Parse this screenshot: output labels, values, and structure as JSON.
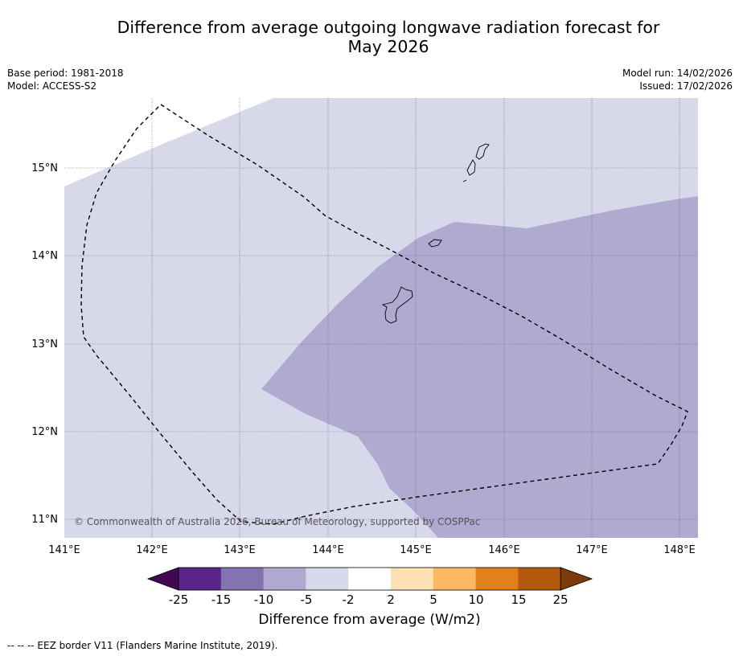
{
  "header": {
    "title_line1": "Difference from average outgoing longwave radiation forecast for",
    "title_line2": "May 2026",
    "base_period": "Base period: 1981-2018",
    "model": "Model: ACCESS-S2",
    "model_run": "Model run: 14/02/2026",
    "issued": "Issued: 17/02/2026"
  },
  "map": {
    "lon_labels": [
      "141°E",
      "142°E",
      "143°E",
      "144°E",
      "145°E",
      "146°E",
      "147°E",
      "148°E"
    ],
    "lat_labels": [
      "15°N",
      "14°N",
      "13°N",
      "12°N",
      "11°N"
    ],
    "copyright": "© Commonwealth of Australia 2026, Bureau of Meteorology, supported by COSPPac",
    "eez_label": "EEZ border"
  },
  "colorbar": {
    "title": "Difference from average (W/m2)",
    "tick_labels": [
      "-25",
      "-15",
      "-10",
      "-5",
      "-2",
      "2",
      "5",
      "10",
      "15",
      "25"
    ],
    "colors": [
      "#3f0a52",
      "#5b2589",
      "#8373b1",
      "#b0a9d1",
      "#d8d8eb",
      "#ffffff",
      "#fee0b5",
      "#fdb864",
      "#e1811b",
      "#b45909",
      "#7e3b0a"
    ]
  },
  "footnote": "--  --  -- EEZ border V11 (Flanders Marine Institute, 2019)."
}
